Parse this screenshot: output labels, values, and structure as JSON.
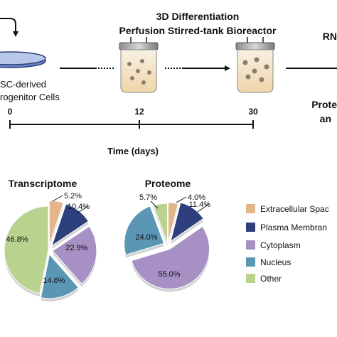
{
  "workflow": {
    "stage_title_line1": "3D Differentiation",
    "stage_title_line2": "Perfusion Stirred-tank Bioreactor",
    "cells_label_line1": "SC-derived",
    "cells_label_line2": "rogenitor Cells",
    "rna_label": "RN",
    "proteomics_label_line1": "Prote",
    "proteomics_label_line2": "an"
  },
  "timeline": {
    "ticks": [
      "0",
      "12",
      "30"
    ],
    "axis_label": "Time (days)"
  },
  "colors": {
    "extracellular": "#e2b58a",
    "plasma_membrane": "#2e3f7d",
    "cytoplasm": "#a790c3",
    "nucleus": "#5b97b5",
    "other": "#b9d38f",
    "ink": "#111111"
  },
  "legend": {
    "items": [
      {
        "label": "Extracellular Spac",
        "color": "#e2b58a"
      },
      {
        "label": "Plasma Membran",
        "color": "#2e3f7d"
      },
      {
        "label": "Cytoplasm",
        "color": "#a790c3"
      },
      {
        "label": "Nucleus",
        "color": "#5b97b5"
      },
      {
        "label": "Other",
        "color": "#b9d38f"
      }
    ]
  },
  "chart_data": [
    {
      "type": "pie",
      "title": "Transcriptome",
      "categories": [
        "Extracellular Space",
        "Plasma Membrane",
        "Cytoplasm",
        "Nucleus",
        "Other"
      ],
      "values": [
        5.2,
        10.4,
        22.9,
        14.6,
        46.8
      ],
      "labels": [
        "5.2%",
        "10.4%",
        "22.9%",
        "14.6%",
        "46.8%"
      ]
    },
    {
      "type": "pie",
      "title": "Proteome",
      "categories": [
        "Extracellular Space",
        "Plasma Membrane",
        "Cytoplasm",
        "Nucleus",
        "Other"
      ],
      "values": [
        4.0,
        11.4,
        55.0,
        24.0,
        5.7
      ],
      "labels": [
        "4.0%",
        "11.4%",
        "55.0%",
        "24.0%",
        "5.7%"
      ]
    }
  ]
}
